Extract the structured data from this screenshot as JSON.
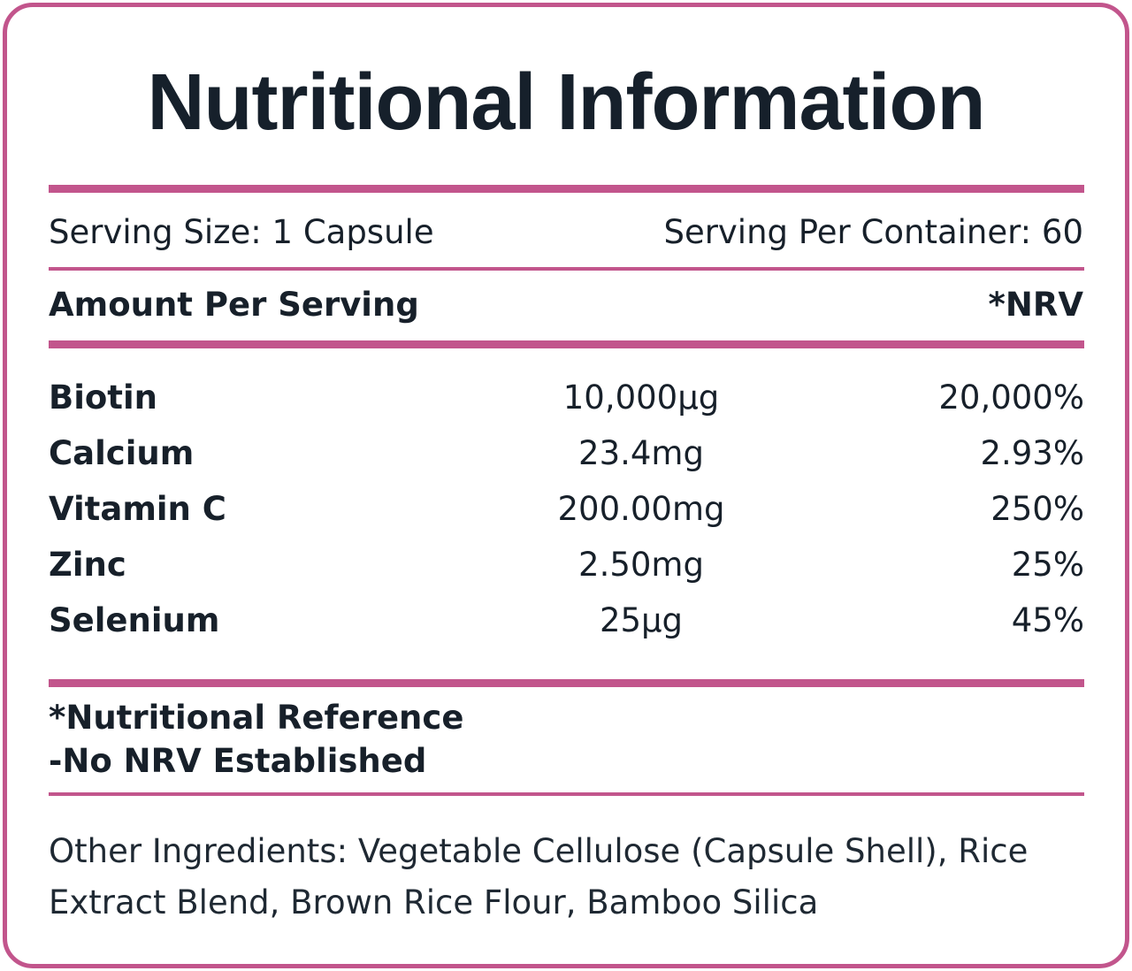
{
  "title": "Nutritional Information",
  "serving": {
    "size": "Serving Size: 1 Capsule",
    "per_container": "Serving Per Container: 60"
  },
  "header": {
    "amount_label": "Amount Per Serving",
    "nrv_label": "*NRV"
  },
  "nutrients": [
    {
      "name": "Biotin",
      "amount": "10,000µg",
      "nrv": "20,000%"
    },
    {
      "name": "Calcium",
      "amount": "23.4mg",
      "nrv": "2.93%"
    },
    {
      "name": "Vitamin C",
      "amount": "200.00mg",
      "nrv": "250%"
    },
    {
      "name": "Zinc",
      "amount": "2.50mg",
      "nrv": "25%"
    },
    {
      "name": "Selenium",
      "amount": "25µg",
      "nrv": "45%"
    }
  ],
  "footnotes": {
    "line1": "*Nutritional Reference",
    "line2": "-No NRV Established"
  },
  "other_ingredients": "Other Ingredients: Vegetable Cellulose (Capsule Shell), Rice Extract Blend, Brown Rice Flour, Bamboo Silica",
  "colors": {
    "accent": "#c2558c",
    "text": "#17202a",
    "background": "#ffffff"
  }
}
